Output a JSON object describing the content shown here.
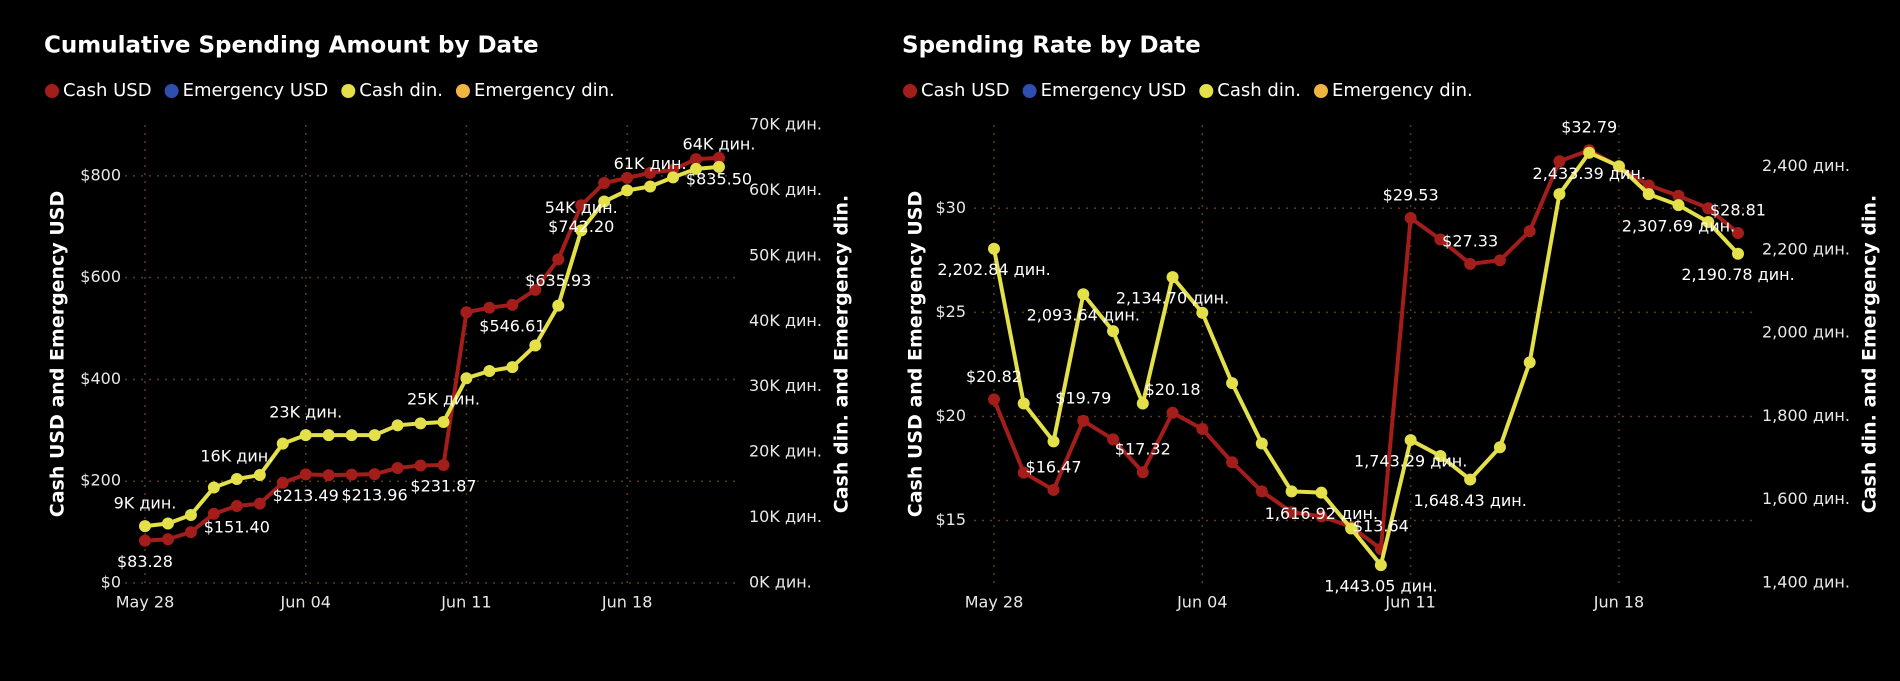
{
  "chart_data": [
    {
      "type": "line",
      "title": "Cumulative Spending Amount by Date",
      "y_label": "Cash USD and Emergency USD",
      "y2_label": "Cash din. and Emergency din.",
      "categories": [
        "May 28",
        null,
        null,
        null,
        null,
        null,
        null,
        "Jun 04",
        null,
        null,
        null,
        null,
        null,
        null,
        "Jun 11",
        null,
        null,
        null,
        null,
        null,
        null,
        "Jun 18",
        null,
        null,
        null,
        null
      ],
      "ylim": [
        0,
        900
      ],
      "yticks": [
        {
          "value": 0,
          "label": "$0"
        },
        {
          "value": 200,
          "label": "$200"
        },
        {
          "value": 400,
          "label": "$400"
        },
        {
          "value": 600,
          "label": "$600"
        },
        {
          "value": 800,
          "label": "$800"
        }
      ],
      "y2lim": [
        0,
        70000
      ],
      "y2ticks": [
        {
          "value": 0,
          "label": "0K дин."
        },
        {
          "value": 10000,
          "label": "10K дин."
        },
        {
          "value": 20000,
          "label": "20K дин."
        },
        {
          "value": 30000,
          "label": "30K дин."
        },
        {
          "value": 40000,
          "label": "40K дин."
        },
        {
          "value": 50000,
          "label": "50K дин."
        },
        {
          "value": 60000,
          "label": "60K дин."
        },
        {
          "value": 70000,
          "label": "70K дин."
        }
      ],
      "grid": true,
      "series": [
        {
          "name": "Cash USD",
          "color": "#a31d1b",
          "axis": "y",
          "values": [
            83.28,
            86,
            100,
            136,
            151.4,
            156,
            197,
            213.49,
            212,
            213,
            213.96,
            226,
            231,
            231.87,
            532,
            541,
            546.61,
            576,
            635.93,
            742.2,
            786,
            796,
            806,
            812,
            833,
            835.5
          ],
          "value_labels": [
            "$83.28",
            null,
            null,
            null,
            "$151.40",
            null,
            null,
            "$213.49",
            null,
            null,
            "$213.96",
            null,
            null,
            "$231.87",
            null,
            null,
            "$546.61",
            null,
            "$635.93",
            "$742.20",
            null,
            null,
            null,
            null,
            null,
            "$835.50"
          ]
        },
        {
          "name": "Emergency USD",
          "color": "#2f4fb0",
          "axis": "y",
          "values": [
            null,
            null,
            null,
            null,
            null,
            null,
            null,
            null,
            null,
            null,
            null,
            null,
            null,
            null,
            null,
            null,
            null,
            null,
            null,
            null,
            null,
            null,
            null,
            null,
            null,
            null
          ]
        },
        {
          "name": "Cash din.",
          "color": "#e3e04a",
          "axis": "y2",
          "values": [
            8700,
            9100,
            10400,
            14600,
            15900,
            16500,
            21300,
            22600,
            22600,
            22600,
            22600,
            24100,
            24400,
            24600,
            31300,
            32400,
            33000,
            36300,
            42400,
            53900,
            58300,
            60000,
            60600,
            62000,
            63300,
            63600
          ],
          "value_labels": [
            "9K дин.",
            null,
            null,
            null,
            "16K дин.",
            null,
            null,
            "23K дин.",
            null,
            null,
            null,
            null,
            null,
            "25K дин.",
            null,
            null,
            null,
            null,
            null,
            "54K дин.",
            null,
            null,
            "61K дин.",
            null,
            null,
            "64K дин."
          ]
        },
        {
          "name": "Emergency din.",
          "color": "#f0b440",
          "axis": "y2",
          "values": [
            null,
            null,
            null,
            null,
            null,
            null,
            null,
            null,
            null,
            null,
            null,
            null,
            null,
            null,
            null,
            null,
            null,
            null,
            null,
            null,
            null,
            null,
            null,
            null,
            null,
            null
          ]
        }
      ]
    },
    {
      "type": "line",
      "title": "Spending Rate by Date",
      "y_label": "Cash USD and Emergency USD",
      "y2_label": "Cash din. and Emergency din.",
      "categories": [
        "May 28",
        null,
        null,
        null,
        null,
        null,
        null,
        "Jun 04",
        null,
        null,
        null,
        null,
        null,
        null,
        "Jun 11",
        null,
        null,
        null,
        null,
        null,
        null,
        "Jun 18",
        null,
        null,
        null,
        null
      ],
      "ylim": [
        12,
        34
      ],
      "yticks": [
        {
          "value": 15,
          "label": "$15"
        },
        {
          "value": 20,
          "label": "$20"
        },
        {
          "value": 25,
          "label": "$25"
        },
        {
          "value": 30,
          "label": "$30"
        }
      ],
      "y2lim": [
        1400,
        2500
      ],
      "y2ticks": [
        {
          "value": 1400,
          "label": "1,400 дин."
        },
        {
          "value": 1600,
          "label": "1,600 дин."
        },
        {
          "value": 1800,
          "label": "1,800 дин."
        },
        {
          "value": 2000,
          "label": "2,000 дин."
        },
        {
          "value": 2200,
          "label": "2,200 дин."
        },
        {
          "value": 2400,
          "label": "2,400 дин."
        }
      ],
      "grid": true,
      "series": [
        {
          "name": "Cash USD",
          "color": "#a31d1b",
          "axis": "y",
          "values": [
            20.82,
            17.3,
            16.47,
            19.79,
            18.9,
            17.32,
            20.18,
            19.4,
            17.8,
            16.4,
            15.4,
            15.2,
            14.7,
            13.64,
            29.53,
            28.5,
            27.33,
            27.5,
            28.9,
            32.26,
            32.79,
            32,
            31.1,
            30.6,
            30,
            28.81
          ],
          "value_labels": [
            "$20.82",
            null,
            "$16.47",
            "$19.79",
            null,
            "$17.32",
            "$20.18",
            null,
            null,
            null,
            null,
            null,
            null,
            "$13.64",
            "$29.53",
            null,
            "$27.33",
            null,
            null,
            null,
            "$32.79",
            null,
            null,
            null,
            null,
            "$28.81"
          ]
        },
        {
          "name": "Emergency USD",
          "color": "#2f4fb0",
          "axis": "y",
          "values": [
            null,
            null,
            null,
            null,
            null,
            null,
            null,
            null,
            null,
            null,
            null,
            null,
            null,
            null,
            null,
            null,
            null,
            null,
            null,
            null,
            null,
            null,
            null,
            null,
            null,
            null
          ]
        },
        {
          "name": "Cash din.",
          "color": "#e3e04a",
          "axis": "y2",
          "values": [
            2202.84,
            1831,
            1740,
            2093.64,
            2005,
            1831,
            2134.7,
            2049,
            1880,
            1735,
            1620,
            1616.92,
            1531,
            1443.05,
            1743.29,
            1705,
            1648.43,
            1726,
            1930,
            2334,
            2433.39,
            2401,
            2334,
            2307.69,
            2267,
            2190.78
          ],
          "value_labels": [
            "2,202.84 дин.",
            null,
            null,
            "2,093.64 дин.",
            null,
            null,
            "2,134.70 дин.",
            null,
            null,
            null,
            null,
            "1,616.92 дин.",
            null,
            "1,443.05 дин.",
            "1,743.29 дин.",
            null,
            "1,648.43 дин.",
            null,
            null,
            null,
            "2,433.39 дин.",
            null,
            null,
            "2,307.69 дин.",
            null,
            "2,190.78 дин."
          ]
        },
        {
          "name": "Emergency din.",
          "color": "#f0b440",
          "axis": "y2",
          "values": [
            null,
            null,
            null,
            null,
            null,
            null,
            null,
            null,
            null,
            null,
            null,
            null,
            null,
            null,
            null,
            null,
            null,
            null,
            null,
            null,
            null,
            null,
            null,
            null,
            null,
            null
          ]
        }
      ]
    }
  ]
}
